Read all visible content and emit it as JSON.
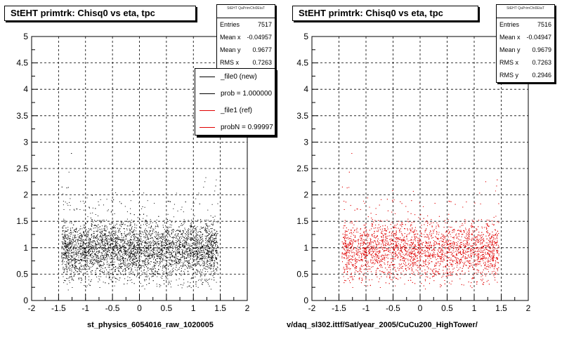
{
  "colors": {
    "new": "#000000",
    "ref": "#e00000"
  },
  "footer_fragment": "",
  "chart_data": [
    {
      "type": "scatter",
      "title": "StEHT primtrk: Chisq0 vs eta, tpc",
      "xlabel": "st_physics_6054016_raw_1020005",
      "ylabel": "",
      "xlim": [
        -2,
        2
      ],
      "ylim": [
        0,
        5
      ],
      "xticks": [
        "-2",
        "-1.5",
        "-1",
        "-0.5",
        "0",
        "0.5",
        "1",
        "1.5",
        "2"
      ],
      "yticks": [
        "0",
        "0.5",
        "1",
        "1.5",
        "2",
        "2.5",
        "3",
        "3.5",
        "4",
        "4.5",
        "5"
      ],
      "grid": true,
      "point_color": "#000000",
      "stats": {
        "name": "StEHT QaPrimChi0EtaT",
        "rows": [
          {
            "label": "Entries",
            "value": "7517"
          },
          {
            "label": "Mean x",
            "value": "-0.04957"
          },
          {
            "label": "Mean y",
            "value": "0.9677"
          },
          {
            "label": "RMS x",
            "value": "0.7263"
          }
        ]
      },
      "legend": {
        "placement": "top-right",
        "entries": [
          {
            "label": "_file0 (new)",
            "color": "#000000"
          },
          {
            "label": "prob = 1.000000",
            "color": "#000000"
          },
          {
            "label": "_file1 (ref)",
            "color": "#e00000"
          },
          {
            "label": "probN = 0.99997",
            "color": "#e00000"
          }
        ]
      },
      "distribution": {
        "x_range": [
          -1.45,
          1.45
        ],
        "y_core": [
          0.35,
          1.5
        ],
        "y_mean": 0.97,
        "y_sd": 0.27
      }
    },
    {
      "type": "scatter",
      "title": "StEHT primtrk: Chisq0 vs eta, tpc",
      "xlabel": "v/daq_sl302.ittf/Sat/year_2005/CuCu200_HighTower/",
      "ylabel": "",
      "xlim": [
        -2,
        2
      ],
      "ylim": [
        0,
        5
      ],
      "xticks": [
        "-2",
        "-1.5",
        "-1",
        "-0.5",
        "0",
        "0.5",
        "1",
        "1.5",
        "2"
      ],
      "yticks": [
        "0",
        "0.5",
        "1",
        "1.5",
        "2",
        "2.5",
        "3",
        "3.5",
        "4",
        "4.5",
        "5"
      ],
      "grid": true,
      "point_color": "#e00000",
      "stats": {
        "name": "StEHT QaPrimChi0EtaT",
        "rows": [
          {
            "label": "Entries",
            "value": "7516"
          },
          {
            "label": "Mean x",
            "value": "-0.04947"
          },
          {
            "label": "Mean y",
            "value": "0.9679"
          },
          {
            "label": "RMS x",
            "value": "0.7263"
          },
          {
            "label": "RMS y",
            "value": "0.2946"
          }
        ]
      },
      "distribution": {
        "x_range": [
          -1.45,
          1.45
        ],
        "y_core": [
          0.35,
          1.5
        ],
        "y_mean": 0.97,
        "y_sd": 0.27
      }
    }
  ]
}
